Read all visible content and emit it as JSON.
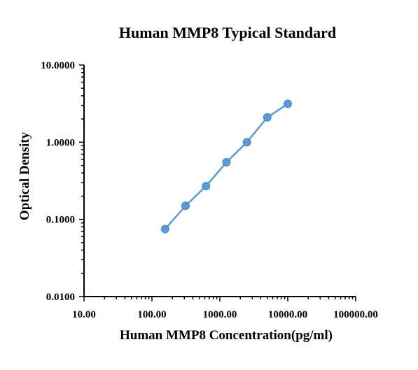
{
  "chart_data": {
    "type": "line",
    "title": "Human MMP8 Typical Standard",
    "xlabel": "Human MMP8 Concentration(pg/ml)",
    "ylabel": "Optical Density",
    "x_scale": "log",
    "y_scale": "log",
    "xlim": [
      10,
      100000
    ],
    "ylim": [
      0.01,
      10
    ],
    "x_ticks": [
      "10.00",
      "100.00",
      "1000.00",
      "10000.00",
      "100000.00"
    ],
    "y_ticks": [
      "0.0100",
      "0.1000",
      "1.0000",
      "10.0000"
    ],
    "grid": false,
    "series": [
      {
        "color": "#5b9bd5",
        "x": [
          156.25,
          312.5,
          625,
          1250,
          2500,
          5000,
          10000
        ],
        "y": [
          0.075,
          0.15,
          0.27,
          0.55,
          1.0,
          2.1,
          3.15
        ]
      }
    ]
  }
}
